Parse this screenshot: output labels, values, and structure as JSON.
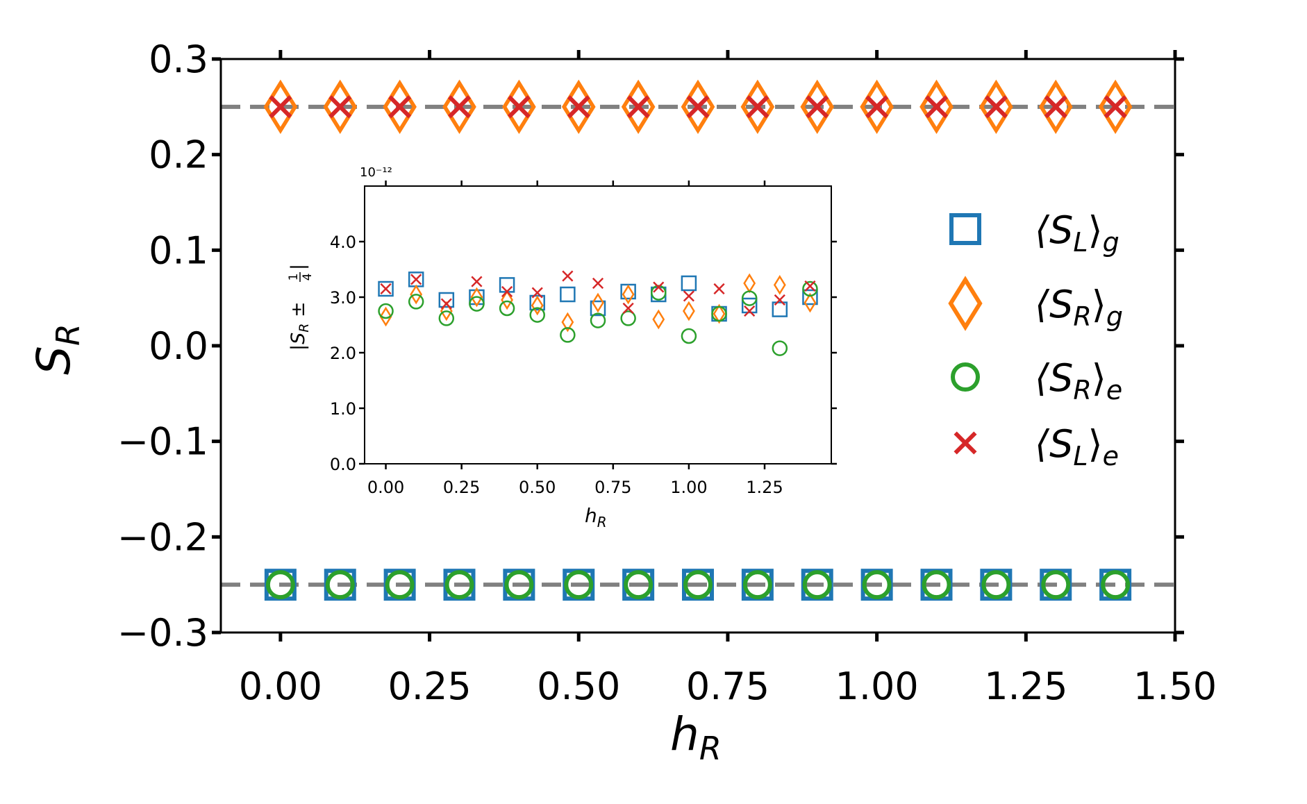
{
  "colors": {
    "blue": "#1f77b4",
    "orange": "#ff7f0e",
    "green": "#2ca02c",
    "red": "#d62728",
    "ref_line": "#808080"
  },
  "chart_data": [
    {
      "id": "main",
      "type": "scatter",
      "xlabel": "h_R",
      "ylabel": "S_R",
      "xlim": [
        -0.1,
        1.5
      ],
      "ylim": [
        -0.3,
        0.3
      ],
      "xticks": [
        "0.00",
        "0.25",
        "0.50",
        "0.75",
        "1.00",
        "1.25",
        "1.50"
      ],
      "yticks": [
        "0.3",
        "0.2",
        "0.1",
        "0.0",
        "−0.1",
        "−0.2",
        "−0.3"
      ],
      "reference_lines": [
        0.25,
        -0.25
      ],
      "x": [
        0.0,
        0.1,
        0.2,
        0.3,
        0.4,
        0.5,
        0.6,
        0.7,
        0.8,
        0.9,
        1.0,
        1.1,
        1.2,
        1.3,
        1.4
      ],
      "series": [
        {
          "name": "⟨S_L⟩_g",
          "marker": "square",
          "color": "#1f77b4",
          "value": -0.25
        },
        {
          "name": "⟨S_R⟩_g",
          "marker": "diamond",
          "color": "#ff7f0e",
          "value": 0.25
        },
        {
          "name": "⟨S_R⟩_e",
          "marker": "circle",
          "color": "#2ca02c",
          "value": -0.25
        },
        {
          "name": "⟨S_L⟩_e",
          "marker": "x",
          "color": "#d62728",
          "value": 0.25
        }
      ],
      "legend": {
        "position": "right",
        "entries": [
          {
            "base": "⟨S",
            "sub": "L",
            "close": "⟩",
            "sub2": "g"
          },
          {
            "base": "⟨S",
            "sub": "R",
            "close": "⟩",
            "sub2": "g"
          },
          {
            "base": "⟨S",
            "sub": "R",
            "close": "⟩",
            "sub2": "e"
          },
          {
            "base": "⟨S",
            "sub": "L",
            "close": "⟩",
            "sub2": "e"
          }
        ]
      }
    },
    {
      "id": "inset",
      "type": "scatter",
      "xlabel": "h_R",
      "ylabel": "|S_R ± 1/4|",
      "scale_label": "10⁻¹²",
      "xlim": [
        -0.07,
        1.47
      ],
      "ylim": [
        0,
        5
      ],
      "xticks": [
        "0.00",
        "0.25",
        "0.50",
        "0.75",
        "1.00",
        "1.25"
      ],
      "yticks": [
        "0.0",
        "1.0",
        "2.0",
        "3.0",
        "4.0"
      ],
      "x": [
        0.0,
        0.1,
        0.2,
        0.3,
        0.4,
        0.5,
        0.6,
        0.7,
        0.8,
        0.9,
        1.0,
        1.1,
        1.2,
        1.3,
        1.4
      ],
      "series": [
        {
          "name": "⟨S_L⟩_g",
          "marker": "square",
          "color": "#1f77b4",
          "values": [
            3.15,
            3.32,
            2.95,
            3.0,
            3.22,
            2.9,
            3.05,
            2.8,
            3.1,
            3.05,
            3.25,
            2.7,
            2.85,
            2.78,
            3.0
          ]
        },
        {
          "name": "⟨S_R⟩_g",
          "marker": "diamond",
          "color": "#ff7f0e",
          "values": [
            2.65,
            3.05,
            2.75,
            3.0,
            2.95,
            2.85,
            2.55,
            2.9,
            3.05,
            2.6,
            2.75,
            2.7,
            3.25,
            3.22,
            2.9
          ]
        },
        {
          "name": "⟨S_R⟩_e",
          "marker": "circle",
          "color": "#2ca02c",
          "values": [
            2.75,
            2.92,
            2.62,
            2.88,
            2.8,
            2.68,
            2.32,
            2.58,
            2.62,
            3.08,
            2.3,
            2.7,
            2.98,
            2.08,
            3.15
          ]
        },
        {
          "name": "⟨S_L⟩_e",
          "marker": "x",
          "color": "#d62728",
          "values": [
            3.15,
            3.32,
            2.88,
            3.28,
            3.1,
            3.08,
            3.38,
            3.25,
            2.8,
            3.18,
            3.02,
            3.15,
            2.75,
            2.95,
            3.2
          ]
        }
      ]
    }
  ]
}
